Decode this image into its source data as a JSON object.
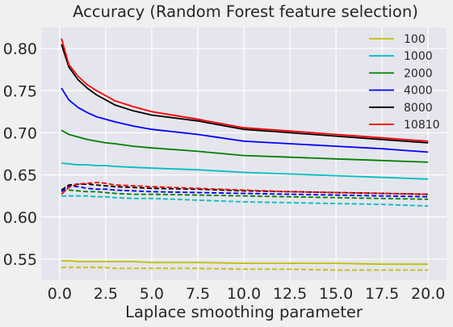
{
  "chart_data": {
    "type": "line",
    "title": "Accuracy (Random Forest feature selection)",
    "xlabel": "Laplace smoothing parameter",
    "ylabel": "",
    "xlim": [
      -1.0,
      21.0
    ],
    "ylim": [
      0.525,
      0.825
    ],
    "xticks": [
      0.0,
      2.5,
      5.0,
      7.5,
      10.0,
      12.5,
      15.0,
      17.5,
      20.0
    ],
    "xtick_labels": [
      "0.0",
      "2.5",
      "5.0",
      "7.5",
      "10.0",
      "12.5",
      "15.0",
      "17.5",
      "20.0"
    ],
    "yticks": [
      0.55,
      0.6,
      0.65,
      0.7,
      0.75,
      0.8
    ],
    "ytick_labels": [
      "0.55",
      "0.60",
      "0.65",
      "0.70",
      "0.75",
      "0.80"
    ],
    "grid": true,
    "legend": {
      "placement": "top-right",
      "linestyle_shown": "solid"
    },
    "x": [
      0.1,
      0.5,
      1,
      1.5,
      2,
      2.5,
      3,
      4,
      5,
      7.5,
      10,
      12.5,
      15,
      17.5,
      20
    ],
    "series": [
      {
        "name": "100",
        "color": "#bfbf00",
        "linestyle": "solid",
        "values": [
          0.548,
          0.548,
          0.547,
          0.547,
          0.547,
          0.547,
          0.547,
          0.547,
          0.546,
          0.546,
          0.545,
          0.545,
          0.545,
          0.544,
          0.544
        ]
      },
      {
        "name": "1000",
        "color": "#00bfbf",
        "linestyle": "solid",
        "values": [
          0.664,
          0.663,
          0.662,
          0.662,
          0.661,
          0.661,
          0.66,
          0.659,
          0.658,
          0.656,
          0.653,
          0.651,
          0.649,
          0.647,
          0.645
        ]
      },
      {
        "name": "2000",
        "color": "#008000",
        "linestyle": "solid",
        "values": [
          0.703,
          0.698,
          0.695,
          0.692,
          0.69,
          0.688,
          0.687,
          0.684,
          0.682,
          0.678,
          0.673,
          0.671,
          0.669,
          0.667,
          0.665
        ]
      },
      {
        "name": "4000",
        "color": "#0000ff",
        "linestyle": "solid",
        "values": [
          0.753,
          0.739,
          0.73,
          0.724,
          0.719,
          0.716,
          0.713,
          0.708,
          0.704,
          0.698,
          0.69,
          0.687,
          0.684,
          0.681,
          0.677
        ]
      },
      {
        "name": "8000",
        "color": "#000000",
        "linestyle": "solid",
        "values": [
          0.805,
          0.778,
          0.763,
          0.753,
          0.745,
          0.739,
          0.733,
          0.726,
          0.721,
          0.714,
          0.704,
          0.7,
          0.696,
          0.692,
          0.688
        ]
      },
      {
        "name": "10810",
        "color": "#ff0000",
        "linestyle": "solid",
        "values": [
          0.812,
          0.781,
          0.767,
          0.757,
          0.75,
          0.744,
          0.738,
          0.731,
          0.725,
          0.716,
          0.706,
          0.702,
          0.698,
          0.694,
          0.69
        ]
      },
      {
        "name": "",
        "color": "#bfbf00",
        "linestyle": "dashed",
        "values": [
          0.54,
          0.54,
          0.54,
          0.54,
          0.54,
          0.54,
          0.539,
          0.539,
          0.539,
          0.539,
          0.538,
          0.538,
          0.537,
          0.537,
          0.537
        ]
      },
      {
        "name": "",
        "color": "#00bfbf",
        "linestyle": "dashed",
        "values": [
          0.625,
          0.625,
          0.625,
          0.625,
          0.624,
          0.624,
          0.623,
          0.622,
          0.622,
          0.62,
          0.618,
          0.617,
          0.616,
          0.615,
          0.613
        ]
      },
      {
        "name": "",
        "color": "#008000",
        "linestyle": "dashed",
        "values": [
          0.631,
          0.632,
          0.631,
          0.63,
          0.63,
          0.629,
          0.628,
          0.627,
          0.627,
          0.626,
          0.625,
          0.624,
          0.623,
          0.622,
          0.621
        ]
      },
      {
        "name": "",
        "color": "#0000ff",
        "linestyle": "dashed",
        "values": [
          0.63,
          0.637,
          0.636,
          0.634,
          0.633,
          0.633,
          0.632,
          0.631,
          0.63,
          0.629,
          0.628,
          0.627,
          0.626,
          0.625,
          0.624
        ]
      },
      {
        "name": "",
        "color": "#000000",
        "linestyle": "dashed",
        "values": [
          0.632,
          0.638,
          0.639,
          0.639,
          0.638,
          0.637,
          0.636,
          0.635,
          0.634,
          0.633,
          0.631,
          0.63,
          0.629,
          0.628,
          0.627
        ]
      },
      {
        "name": "",
        "color": "#ff0000",
        "linestyle": "dashed",
        "values": [
          0.627,
          0.635,
          0.639,
          0.64,
          0.641,
          0.64,
          0.638,
          0.637,
          0.636,
          0.634,
          0.632,
          0.63,
          0.629,
          0.628,
          0.627
        ]
      }
    ]
  }
}
